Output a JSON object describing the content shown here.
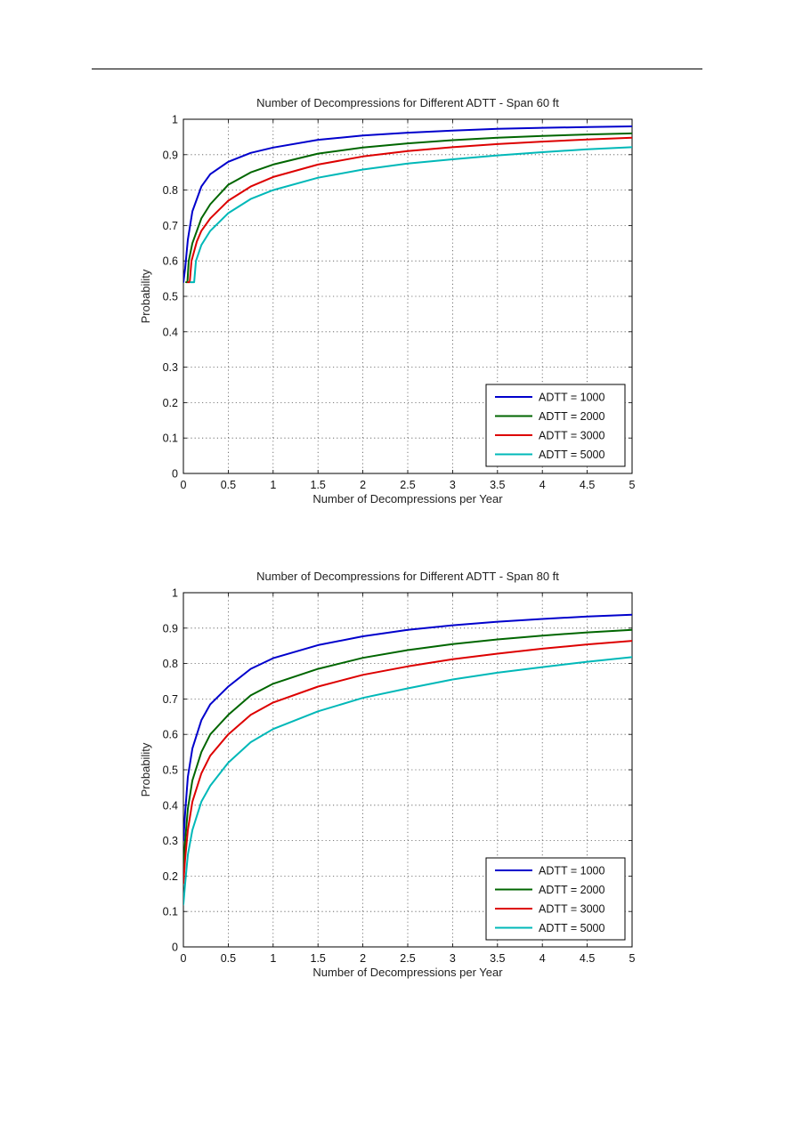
{
  "chart_data": [
    {
      "type": "line",
      "title": "Number of Decompressions for Different ADTT - Span 60 ft",
      "xlabel": "Number of Decompressions per Year",
      "ylabel": "Probability",
      "xlim": [
        0,
        5
      ],
      "ylim": [
        0,
        1
      ],
      "xticks": [
        "0",
        "0.5",
        "1",
        "1.5",
        "2",
        "2.5",
        "3",
        "3.5",
        "4",
        "4.5",
        "5"
      ],
      "yticks": [
        "0",
        "0.1",
        "0.2",
        "0.3",
        "0.4",
        "0.5",
        "0.6",
        "0.7",
        "0.8",
        "0.9",
        "1"
      ],
      "grid": true,
      "legend_position": "bottom-right",
      "series": [
        {
          "name": "ADTT = 1000",
          "color": "#0000cc",
          "x": [
            0,
            0.02,
            0.05,
            0.1,
            0.2,
            0.3,
            0.5,
            0.75,
            1,
            1.5,
            2,
            2.5,
            3,
            3.5,
            4,
            4.5,
            5
          ],
          "y": [
            0.54,
            0.58,
            0.66,
            0.74,
            0.81,
            0.845,
            0.88,
            0.905,
            0.92,
            0.942,
            0.954,
            0.962,
            0.968,
            0.973,
            0.976,
            0.978,
            0.98
          ]
        },
        {
          "name": "ADTT = 2000",
          "color": "#006600",
          "x": [
            0.03,
            0.045,
            0.06,
            0.1,
            0.2,
            0.3,
            0.5,
            0.75,
            1,
            1.5,
            2,
            2.5,
            3,
            3.5,
            4,
            4.5,
            5
          ],
          "y": [
            0.54,
            0.54,
            0.6,
            0.65,
            0.72,
            0.76,
            0.815,
            0.85,
            0.872,
            0.903,
            0.92,
            0.932,
            0.941,
            0.948,
            0.953,
            0.957,
            0.96
          ]
        },
        {
          "name": "ADTT = 3000",
          "color": "#dd0000",
          "x": [
            0.05,
            0.07,
            0.09,
            0.15,
            0.2,
            0.3,
            0.5,
            0.75,
            1,
            1.5,
            2,
            2.5,
            3,
            3.5,
            4,
            4.5,
            5
          ],
          "y": [
            0.54,
            0.54,
            0.6,
            0.655,
            0.685,
            0.72,
            0.77,
            0.81,
            0.837,
            0.872,
            0.895,
            0.91,
            0.921,
            0.93,
            0.937,
            0.943,
            0.948
          ]
        },
        {
          "name": "ADTT = 5000",
          "color": "#00b8b8",
          "x": [
            0.08,
            0.12,
            0.14,
            0.2,
            0.3,
            0.5,
            0.75,
            1,
            1.5,
            2,
            2.5,
            3,
            3.5,
            4,
            4.5,
            5
          ],
          "y": [
            0.54,
            0.54,
            0.6,
            0.645,
            0.685,
            0.735,
            0.775,
            0.8,
            0.835,
            0.858,
            0.875,
            0.887,
            0.898,
            0.907,
            0.915,
            0.921
          ]
        }
      ]
    },
    {
      "type": "line",
      "title": "Number of Decompressions for Different ADTT - Span 80 ft",
      "xlabel": "Number of Decompressions per Year",
      "ylabel": "Probability",
      "xlim": [
        0,
        5
      ],
      "ylim": [
        0,
        1
      ],
      "xticks": [
        "0",
        "0.5",
        "1",
        "1.5",
        "2",
        "2.5",
        "3",
        "3.5",
        "4",
        "4.5",
        "5"
      ],
      "yticks": [
        "0",
        "0.1",
        "0.2",
        "0.3",
        "0.4",
        "0.5",
        "0.6",
        "0.7",
        "0.8",
        "0.9",
        "1"
      ],
      "grid": true,
      "legend_position": "bottom-right",
      "series": [
        {
          "name": "ADTT = 1000",
          "color": "#0000cc",
          "x": [
            0,
            0.02,
            0.05,
            0.1,
            0.2,
            0.3,
            0.5,
            0.75,
            1,
            1.5,
            2,
            2.5,
            3,
            3.5,
            4,
            4.5,
            5
          ],
          "y": [
            0.3,
            0.38,
            0.48,
            0.56,
            0.64,
            0.685,
            0.735,
            0.785,
            0.815,
            0.852,
            0.877,
            0.895,
            0.908,
            0.918,
            0.926,
            0.933,
            0.938
          ]
        },
        {
          "name": "ADTT = 2000",
          "color": "#006600",
          "x": [
            0,
            0.02,
            0.05,
            0.1,
            0.2,
            0.3,
            0.5,
            0.75,
            1,
            1.5,
            2,
            2.5,
            3,
            3.5,
            4,
            4.5,
            5
          ],
          "y": [
            0.22,
            0.3,
            0.39,
            0.47,
            0.55,
            0.6,
            0.655,
            0.71,
            0.743,
            0.785,
            0.816,
            0.838,
            0.855,
            0.868,
            0.879,
            0.888,
            0.895
          ]
        },
        {
          "name": "ADTT = 3000",
          "color": "#dd0000",
          "x": [
            0,
            0.02,
            0.05,
            0.1,
            0.2,
            0.3,
            0.5,
            0.75,
            1,
            1.5,
            2,
            2.5,
            3,
            3.5,
            4,
            4.5,
            5
          ],
          "y": [
            0.18,
            0.25,
            0.33,
            0.41,
            0.49,
            0.54,
            0.6,
            0.655,
            0.69,
            0.735,
            0.768,
            0.792,
            0.812,
            0.828,
            0.842,
            0.854,
            0.864
          ]
        },
        {
          "name": "ADTT = 5000",
          "color": "#00b8b8",
          "x": [
            0,
            0.02,
            0.05,
            0.1,
            0.2,
            0.3,
            0.5,
            0.75,
            1,
            1.5,
            2,
            2.5,
            3,
            3.5,
            4,
            4.5,
            5
          ],
          "y": [
            0.12,
            0.18,
            0.26,
            0.33,
            0.41,
            0.455,
            0.52,
            0.578,
            0.615,
            0.665,
            0.703,
            0.73,
            0.755,
            0.774,
            0.79,
            0.805,
            0.818
          ]
        }
      ]
    }
  ]
}
